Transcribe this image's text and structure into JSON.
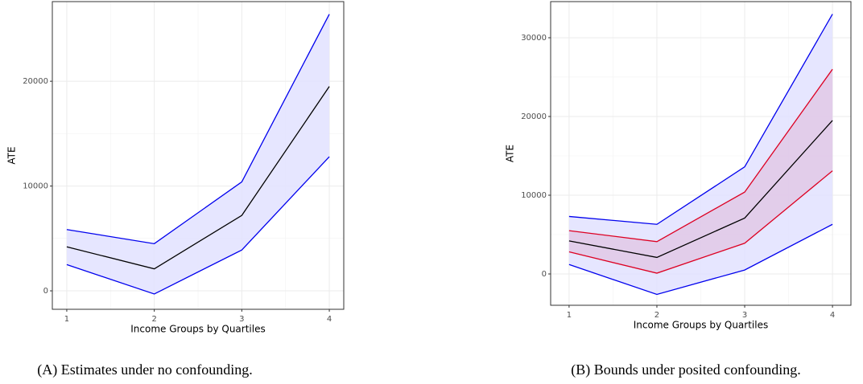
{
  "chart_data": [
    {
      "type": "line",
      "caption": "(A) Estimates under no confounding.",
      "xlabel": "Income Groups by Quartiles",
      "ylabel": "ATE",
      "x": [
        1,
        2,
        3,
        4
      ],
      "xlim": [
        0.835,
        4.165
      ],
      "xticks": [
        1,
        2,
        3,
        4
      ],
      "ylim": [
        -1760,
        27600
      ],
      "yticks": [
        0,
        10000,
        20000
      ],
      "grid": true,
      "bands": [
        {
          "color": "#0000ee",
          "fill": "#e2e2ff",
          "upper": [
            5850,
            4500,
            10400,
            26400
          ],
          "lower": [
            2500,
            -300,
            3900,
            12800
          ]
        }
      ],
      "series": [
        {
          "color": "#000000",
          "values": [
            4200,
            2100,
            7200,
            19500
          ]
        }
      ]
    },
    {
      "type": "line",
      "caption": "(B) Bounds under posited confounding.",
      "xlabel": "Income Groups by Quartiles",
      "ylabel": "ATE",
      "x": [
        1,
        2,
        3,
        4
      ],
      "xlim": [
        0.79,
        4.21
      ],
      "xticks": [
        1,
        2,
        3,
        4
      ],
      "ylim": [
        -3980,
        34590
      ],
      "yticks": [
        0,
        10000,
        20000,
        30000
      ],
      "grid": true,
      "bands": [
        {
          "color": "#0000ee",
          "fill": "#e2e2ff",
          "upper": [
            7300,
            6300,
            13600,
            33000
          ],
          "lower": [
            1200,
            -2600,
            500,
            6300
          ]
        },
        {
          "color": "#dd0022",
          "fill": "#e0c8e6",
          "upper": [
            5500,
            4100,
            10400,
            26000
          ],
          "lower": [
            2800,
            100,
            3900,
            13100
          ]
        }
      ],
      "series": [
        {
          "color": "#000000",
          "values": [
            4200,
            2100,
            7100,
            19500
          ]
        }
      ]
    }
  ]
}
